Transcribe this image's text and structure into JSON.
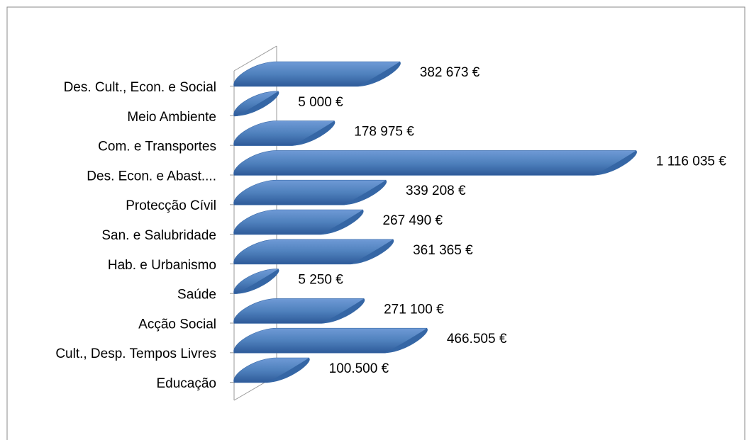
{
  "chart_data": {
    "type": "bar3d_h",
    "categories": [
      "Des. Cult., Econ. e Social",
      "Meio Ambiente",
      "Com. e Transportes",
      "Des. Econ. e Abast....",
      "Protecção Cívil",
      "San. e Salubridade",
      "Hab. e Urbanismo",
      "Saúde",
      "Acção Social",
      "Cult., Desp. Tempos Livres",
      "Educação"
    ],
    "values": [
      382673,
      5000,
      178975,
      1116035,
      339208,
      267490,
      361365,
      5250,
      271100,
      466505,
      100500
    ],
    "value_labels": [
      "382 673 €",
      "5 000 €",
      "178 975 €",
      "1 116 035 €",
      "339 208 €",
      "267 490 €",
      "361 365 €",
      "5 250 €",
      "271 100 €",
      "466.505 €",
      "100.500 €"
    ],
    "color": "#4f81bd",
    "xlim": [
      0,
      1200000
    ]
  }
}
